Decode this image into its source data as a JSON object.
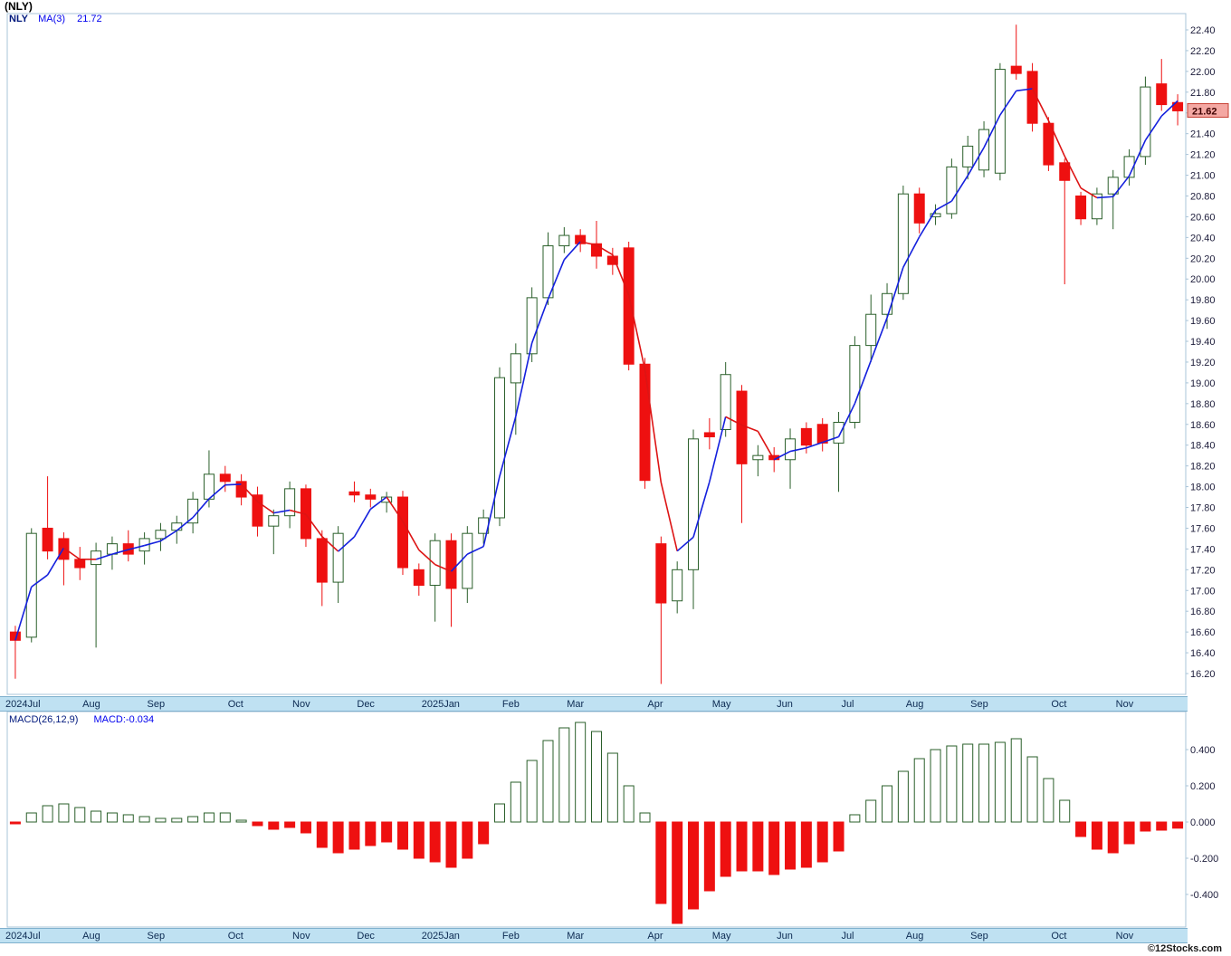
{
  "title": "(NLY)",
  "price_legend": {
    "symbol": "NLY",
    "ma": "MA(3)",
    "ma_value": "21.72"
  },
  "macd_legend": {
    "label": "MACD(26,12,9)",
    "value": "MACD:-0.034"
  },
  "last_price": "21.62",
  "watermark": "©12Stocks.com",
  "colors": {
    "up": "#2a5f2a",
    "up_fill": "#ffffff",
    "down": "#ee1010",
    "ma_up": "#1420dd",
    "ma_down": "#dd1414",
    "frame": "#a9c4d8",
    "tag_bg": "#f4a8a3",
    "tag_border": "#c63f33"
  },
  "chart_data": [
    {
      "type": "candlestick",
      "title": "NLY weekly price with MA(3)",
      "ylabel": "Price (USD)",
      "ylim": [
        15.98,
        22.56
      ],
      "grid": false,
      "y_ticks": {
        "min": 16.2,
        "max": 22.4,
        "step": 0.2
      },
      "x_tick_labels": [
        "2024Jul",
        "Aug",
        "Sep",
        "Oct",
        "Nov",
        "Dec",
        "2025Jan",
        "Feb",
        "Mar",
        "Apr",
        "May",
        "Jun",
        "Jul",
        "Aug",
        "Sep",
        "Oct",
        "Nov"
      ],
      "x_tick_indices": [
        0,
        5,
        9,
        14,
        18,
        22,
        26,
        31,
        35,
        40,
        44,
        48,
        52,
        56,
        60,
        65,
        69
      ],
      "ma_period": 3,
      "candles": [
        [
          16.6,
          16.66,
          16.15,
          16.52
        ],
        [
          16.55,
          17.6,
          16.5,
          17.55
        ],
        [
          17.6,
          18.1,
          17.3,
          17.38
        ],
        [
          17.5,
          17.56,
          17.05,
          17.3
        ],
        [
          17.3,
          17.42,
          17.1,
          17.22
        ],
        [
          17.25,
          17.46,
          16.45,
          17.38
        ],
        [
          17.35,
          17.52,
          17.2,
          17.45
        ],
        [
          17.45,
          17.58,
          17.28,
          17.35
        ],
        [
          17.38,
          17.56,
          17.25,
          17.5
        ],
        [
          17.5,
          17.65,
          17.38,
          17.58
        ],
        [
          17.58,
          17.72,
          17.45,
          17.65
        ],
        [
          17.65,
          17.95,
          17.55,
          17.88
        ],
        [
          17.88,
          18.35,
          17.8,
          18.12
        ],
        [
          18.12,
          18.2,
          17.95,
          18.05
        ],
        [
          18.05,
          18.12,
          17.82,
          17.9
        ],
        [
          17.92,
          18.0,
          17.52,
          17.62
        ],
        [
          17.62,
          17.78,
          17.35,
          17.72
        ],
        [
          17.72,
          18.05,
          17.6,
          17.98
        ],
        [
          17.98,
          18.02,
          17.42,
          17.5
        ],
        [
          17.5,
          17.58,
          16.85,
          17.08
        ],
        [
          17.08,
          17.62,
          16.88,
          17.55
        ],
        [
          17.95,
          18.05,
          17.85,
          17.92
        ],
        [
          17.92,
          17.98,
          17.8,
          17.88
        ],
        [
          17.85,
          17.95,
          17.75,
          17.9
        ],
        [
          17.9,
          17.96,
          17.15,
          17.22
        ],
        [
          17.2,
          17.26,
          16.95,
          17.05
        ],
        [
          17.05,
          17.55,
          16.7,
          17.48
        ],
        [
          17.48,
          17.55,
          16.65,
          17.02
        ],
        [
          17.02,
          17.62,
          16.88,
          17.55
        ],
        [
          17.55,
          17.78,
          17.45,
          17.7
        ],
        [
          17.7,
          19.15,
          17.62,
          19.05
        ],
        [
          19.0,
          19.38,
          18.5,
          19.28
        ],
        [
          19.28,
          19.92,
          19.2,
          19.82
        ],
        [
          19.82,
          20.45,
          19.75,
          20.32
        ],
        [
          20.32,
          20.5,
          20.25,
          20.42
        ],
        [
          20.42,
          20.48,
          20.26,
          20.34
        ],
        [
          20.34,
          20.56,
          20.1,
          20.22
        ],
        [
          20.22,
          20.3,
          20.04,
          20.14
        ],
        [
          20.3,
          20.36,
          19.12,
          19.18
        ],
        [
          19.18,
          19.24,
          17.98,
          18.06
        ],
        [
          17.45,
          17.52,
          16.1,
          16.88
        ],
        [
          16.9,
          17.28,
          16.78,
          17.2
        ],
        [
          17.2,
          18.55,
          16.82,
          18.46
        ],
        [
          18.52,
          18.66,
          18.36,
          18.48
        ],
        [
          18.55,
          19.2,
          18.48,
          19.08
        ],
        [
          18.92,
          18.98,
          17.65,
          18.22
        ],
        [
          18.26,
          18.4,
          18.1,
          18.3
        ],
        [
          18.3,
          18.38,
          18.14,
          18.26
        ],
        [
          18.26,
          18.56,
          17.98,
          18.46
        ],
        [
          18.56,
          18.62,
          18.32,
          18.4
        ],
        [
          18.6,
          18.66,
          18.34,
          18.42
        ],
        [
          18.42,
          18.72,
          17.95,
          18.62
        ],
        [
          18.62,
          19.45,
          18.56,
          19.36
        ],
        [
          19.36,
          19.85,
          19.2,
          19.66
        ],
        [
          19.66,
          19.96,
          19.52,
          19.86
        ],
        [
          19.86,
          20.9,
          19.8,
          20.82
        ],
        [
          20.82,
          20.88,
          20.44,
          20.54
        ],
        [
          20.6,
          20.72,
          20.52,
          20.63
        ],
        [
          20.63,
          21.16,
          20.58,
          21.08
        ],
        [
          21.08,
          21.38,
          20.96,
          21.28
        ],
        [
          21.05,
          21.52,
          20.98,
          21.44
        ],
        [
          21.02,
          22.08,
          20.95,
          22.02
        ],
        [
          22.05,
          22.45,
          21.92,
          21.98
        ],
        [
          22.0,
          22.08,
          21.42,
          21.5
        ],
        [
          21.5,
          21.56,
          21.04,
          21.1
        ],
        [
          21.12,
          21.16,
          19.95,
          20.95
        ],
        [
          20.8,
          20.84,
          20.52,
          20.58
        ],
        [
          20.58,
          20.88,
          20.52,
          20.82
        ],
        [
          20.82,
          21.05,
          20.48,
          20.98
        ],
        [
          20.98,
          21.25,
          20.9,
          21.18
        ],
        [
          21.18,
          21.95,
          21.1,
          21.85
        ],
        [
          21.88,
          22.12,
          21.62,
          21.68
        ],
        [
          21.7,
          21.78,
          21.48,
          21.62
        ]
      ]
    },
    {
      "type": "bar",
      "title": "MACD(26,12,9) histogram",
      "ylim": [
        -0.59,
        0.61
      ],
      "grid": false,
      "y_ticks": [
        0.4,
        0.2,
        0.0,
        -0.2,
        -0.4
      ],
      "values": [
        -0.01,
        0.05,
        0.09,
        0.1,
        0.08,
        0.06,
        0.05,
        0.04,
        0.03,
        0.02,
        0.02,
        0.03,
        0.05,
        0.05,
        0.01,
        -0.02,
        -0.04,
        -0.03,
        -0.06,
        -0.14,
        -0.17,
        -0.15,
        -0.13,
        -0.11,
        -0.15,
        -0.2,
        -0.22,
        -0.25,
        -0.2,
        -0.12,
        0.1,
        0.22,
        0.34,
        0.45,
        0.52,
        0.55,
        0.5,
        0.38,
        0.2,
        0.05,
        -0.45,
        -0.56,
        -0.48,
        -0.38,
        -0.3,
        -0.27,
        -0.27,
        -0.29,
        -0.26,
        -0.25,
        -0.22,
        -0.16,
        0.04,
        0.12,
        0.2,
        0.28,
        0.35,
        0.4,
        0.42,
        0.43,
        0.43,
        0.44,
        0.46,
        0.36,
        0.24,
        0.12,
        -0.08,
        -0.15,
        -0.17,
        -0.12,
        -0.05,
        -0.045,
        -0.034
      ]
    }
  ]
}
